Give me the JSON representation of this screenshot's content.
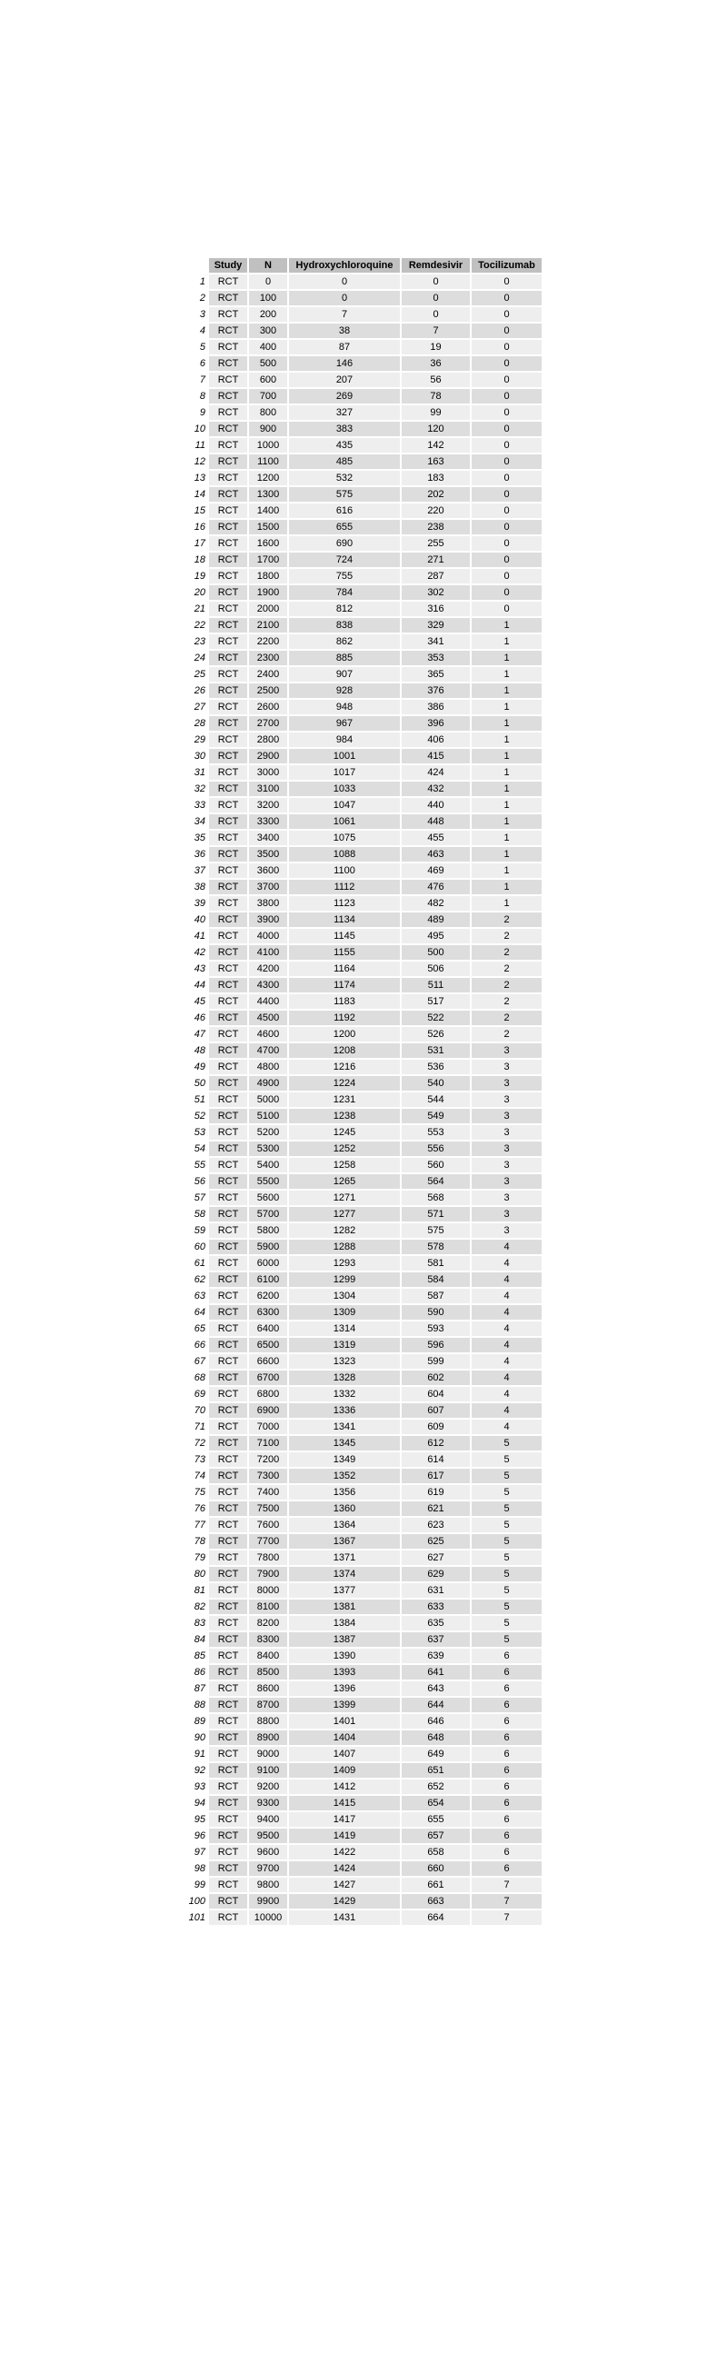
{
  "table": {
    "headers": [
      "",
      "Study",
      "N",
      "Hydroxychloroquine",
      "Remdesivir",
      "Tocilizumab"
    ],
    "rows": [
      [
        "1",
        "RCT",
        "0",
        "0",
        "0",
        "0"
      ],
      [
        "2",
        "RCT",
        "100",
        "0",
        "0",
        "0"
      ],
      [
        "3",
        "RCT",
        "200",
        "7",
        "0",
        "0"
      ],
      [
        "4",
        "RCT",
        "300",
        "38",
        "7",
        "0"
      ],
      [
        "5",
        "RCT",
        "400",
        "87",
        "19",
        "0"
      ],
      [
        "6",
        "RCT",
        "500",
        "146",
        "36",
        "0"
      ],
      [
        "7",
        "RCT",
        "600",
        "207",
        "56",
        "0"
      ],
      [
        "8",
        "RCT",
        "700",
        "269",
        "78",
        "0"
      ],
      [
        "9",
        "RCT",
        "800",
        "327",
        "99",
        "0"
      ],
      [
        "10",
        "RCT",
        "900",
        "383",
        "120",
        "0"
      ],
      [
        "11",
        "RCT",
        "1000",
        "435",
        "142",
        "0"
      ],
      [
        "12",
        "RCT",
        "1100",
        "485",
        "163",
        "0"
      ],
      [
        "13",
        "RCT",
        "1200",
        "532",
        "183",
        "0"
      ],
      [
        "14",
        "RCT",
        "1300",
        "575",
        "202",
        "0"
      ],
      [
        "15",
        "RCT",
        "1400",
        "616",
        "220",
        "0"
      ],
      [
        "16",
        "RCT",
        "1500",
        "655",
        "238",
        "0"
      ],
      [
        "17",
        "RCT",
        "1600",
        "690",
        "255",
        "0"
      ],
      [
        "18",
        "RCT",
        "1700",
        "724",
        "271",
        "0"
      ],
      [
        "19",
        "RCT",
        "1800",
        "755",
        "287",
        "0"
      ],
      [
        "20",
        "RCT",
        "1900",
        "784",
        "302",
        "0"
      ],
      [
        "21",
        "RCT",
        "2000",
        "812",
        "316",
        "0"
      ],
      [
        "22",
        "RCT",
        "2100",
        "838",
        "329",
        "1"
      ],
      [
        "23",
        "RCT",
        "2200",
        "862",
        "341",
        "1"
      ],
      [
        "24",
        "RCT",
        "2300",
        "885",
        "353",
        "1"
      ],
      [
        "25",
        "RCT",
        "2400",
        "907",
        "365",
        "1"
      ],
      [
        "26",
        "RCT",
        "2500",
        "928",
        "376",
        "1"
      ],
      [
        "27",
        "RCT",
        "2600",
        "948",
        "386",
        "1"
      ],
      [
        "28",
        "RCT",
        "2700",
        "967",
        "396",
        "1"
      ],
      [
        "29",
        "RCT",
        "2800",
        "984",
        "406",
        "1"
      ],
      [
        "30",
        "RCT",
        "2900",
        "1001",
        "415",
        "1"
      ],
      [
        "31",
        "RCT",
        "3000",
        "1017",
        "424",
        "1"
      ],
      [
        "32",
        "RCT",
        "3100",
        "1033",
        "432",
        "1"
      ],
      [
        "33",
        "RCT",
        "3200",
        "1047",
        "440",
        "1"
      ],
      [
        "34",
        "RCT",
        "3300",
        "1061",
        "448",
        "1"
      ],
      [
        "35",
        "RCT",
        "3400",
        "1075",
        "455",
        "1"
      ],
      [
        "36",
        "RCT",
        "3500",
        "1088",
        "463",
        "1"
      ],
      [
        "37",
        "RCT",
        "3600",
        "1100",
        "469",
        "1"
      ],
      [
        "38",
        "RCT",
        "3700",
        "1112",
        "476",
        "1"
      ],
      [
        "39",
        "RCT",
        "3800",
        "1123",
        "482",
        "1"
      ],
      [
        "40",
        "RCT",
        "3900",
        "1134",
        "489",
        "2"
      ],
      [
        "41",
        "RCT",
        "4000",
        "1145",
        "495",
        "2"
      ],
      [
        "42",
        "RCT",
        "4100",
        "1155",
        "500",
        "2"
      ],
      [
        "43",
        "RCT",
        "4200",
        "1164",
        "506",
        "2"
      ],
      [
        "44",
        "RCT",
        "4300",
        "1174",
        "511",
        "2"
      ],
      [
        "45",
        "RCT",
        "4400",
        "1183",
        "517",
        "2"
      ],
      [
        "46",
        "RCT",
        "4500",
        "1192",
        "522",
        "2"
      ],
      [
        "47",
        "RCT",
        "4600",
        "1200",
        "526",
        "2"
      ],
      [
        "48",
        "RCT",
        "4700",
        "1208",
        "531",
        "3"
      ],
      [
        "49",
        "RCT",
        "4800",
        "1216",
        "536",
        "3"
      ],
      [
        "50",
        "RCT",
        "4900",
        "1224",
        "540",
        "3"
      ],
      [
        "51",
        "RCT",
        "5000",
        "1231",
        "544",
        "3"
      ],
      [
        "52",
        "RCT",
        "5100",
        "1238",
        "549",
        "3"
      ],
      [
        "53",
        "RCT",
        "5200",
        "1245",
        "553",
        "3"
      ],
      [
        "54",
        "RCT",
        "5300",
        "1252",
        "556",
        "3"
      ],
      [
        "55",
        "RCT",
        "5400",
        "1258",
        "560",
        "3"
      ],
      [
        "56",
        "RCT",
        "5500",
        "1265",
        "564",
        "3"
      ],
      [
        "57",
        "RCT",
        "5600",
        "1271",
        "568",
        "3"
      ],
      [
        "58",
        "RCT",
        "5700",
        "1277",
        "571",
        "3"
      ],
      [
        "59",
        "RCT",
        "5800",
        "1282",
        "575",
        "3"
      ],
      [
        "60",
        "RCT",
        "5900",
        "1288",
        "578",
        "4"
      ],
      [
        "61",
        "RCT",
        "6000",
        "1293",
        "581",
        "4"
      ],
      [
        "62",
        "RCT",
        "6100",
        "1299",
        "584",
        "4"
      ],
      [
        "63",
        "RCT",
        "6200",
        "1304",
        "587",
        "4"
      ],
      [
        "64",
        "RCT",
        "6300",
        "1309",
        "590",
        "4"
      ],
      [
        "65",
        "RCT",
        "6400",
        "1314",
        "593",
        "4"
      ],
      [
        "66",
        "RCT",
        "6500",
        "1319",
        "596",
        "4"
      ],
      [
        "67",
        "RCT",
        "6600",
        "1323",
        "599",
        "4"
      ],
      [
        "68",
        "RCT",
        "6700",
        "1328",
        "602",
        "4"
      ],
      [
        "69",
        "RCT",
        "6800",
        "1332",
        "604",
        "4"
      ],
      [
        "70",
        "RCT",
        "6900",
        "1336",
        "607",
        "4"
      ],
      [
        "71",
        "RCT",
        "7000",
        "1341",
        "609",
        "4"
      ],
      [
        "72",
        "RCT",
        "7100",
        "1345",
        "612",
        "5"
      ],
      [
        "73",
        "RCT",
        "7200",
        "1349",
        "614",
        "5"
      ],
      [
        "74",
        "RCT",
        "7300",
        "1352",
        "617",
        "5"
      ],
      [
        "75",
        "RCT",
        "7400",
        "1356",
        "619",
        "5"
      ],
      [
        "76",
        "RCT",
        "7500",
        "1360",
        "621",
        "5"
      ],
      [
        "77",
        "RCT",
        "7600",
        "1364",
        "623",
        "5"
      ],
      [
        "78",
        "RCT",
        "7700",
        "1367",
        "625",
        "5"
      ],
      [
        "79",
        "RCT",
        "7800",
        "1371",
        "627",
        "5"
      ],
      [
        "80",
        "RCT",
        "7900",
        "1374",
        "629",
        "5"
      ],
      [
        "81",
        "RCT",
        "8000",
        "1377",
        "631",
        "5"
      ],
      [
        "82",
        "RCT",
        "8100",
        "1381",
        "633",
        "5"
      ],
      [
        "83",
        "RCT",
        "8200",
        "1384",
        "635",
        "5"
      ],
      [
        "84",
        "RCT",
        "8300",
        "1387",
        "637",
        "5"
      ],
      [
        "85",
        "RCT",
        "8400",
        "1390",
        "639",
        "6"
      ],
      [
        "86",
        "RCT",
        "8500",
        "1393",
        "641",
        "6"
      ],
      [
        "87",
        "RCT",
        "8600",
        "1396",
        "643",
        "6"
      ],
      [
        "88",
        "RCT",
        "8700",
        "1399",
        "644",
        "6"
      ],
      [
        "89",
        "RCT",
        "8800",
        "1401",
        "646",
        "6"
      ],
      [
        "90",
        "RCT",
        "8900",
        "1404",
        "648",
        "6"
      ],
      [
        "91",
        "RCT",
        "9000",
        "1407",
        "649",
        "6"
      ],
      [
        "92",
        "RCT",
        "9100",
        "1409",
        "651",
        "6"
      ],
      [
        "93",
        "RCT",
        "9200",
        "1412",
        "652",
        "6"
      ],
      [
        "94",
        "RCT",
        "9300",
        "1415",
        "654",
        "6"
      ],
      [
        "95",
        "RCT",
        "9400",
        "1417",
        "655",
        "6"
      ],
      [
        "96",
        "RCT",
        "9500",
        "1419",
        "657",
        "6"
      ],
      [
        "97",
        "RCT",
        "9600",
        "1422",
        "658",
        "6"
      ],
      [
        "98",
        "RCT",
        "9700",
        "1424",
        "660",
        "6"
      ],
      [
        "99",
        "RCT",
        "9800",
        "1427",
        "661",
        "7"
      ],
      [
        "100",
        "RCT",
        "9900",
        "1429",
        "663",
        "7"
      ],
      [
        "101",
        "RCT",
        "10000",
        "1431",
        "664",
        "7"
      ]
    ]
  },
  "colors": {
    "header_bg": "#c0c0c0",
    "row_light": "#eeeeee",
    "row_dark": "#dddddd"
  }
}
